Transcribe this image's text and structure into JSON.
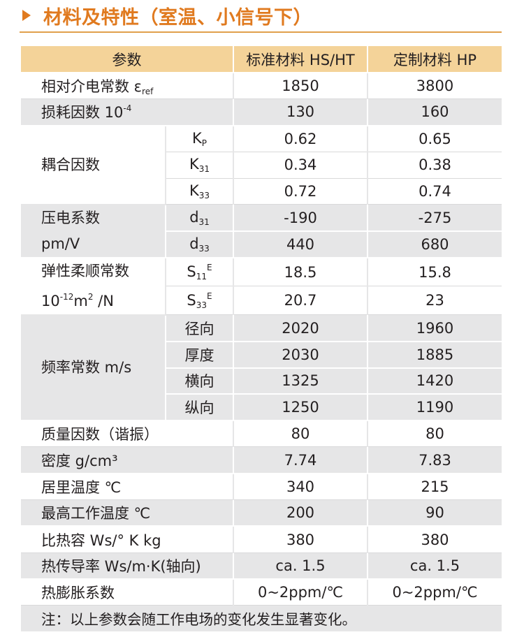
{
  "title": "材料及特性（室温、小信号下）",
  "headers": {
    "param": "参数",
    "std": "标准材料 HS/HT",
    "custom": "定制材料 HP"
  },
  "rows": {
    "eps": {
      "label": "相对介电常数 ε",
      "label_sub": "ref",
      "std": "1850",
      "custom": "3800"
    },
    "loss": {
      "label": "损耗因数 10",
      "label_sup": "-4",
      "std": "130",
      "custom": "160"
    },
    "coupling": {
      "label": "耦合因数",
      "kp": {
        "sym": "K",
        "sub": "P",
        "std": "0.62",
        "custom": "0.65"
      },
      "k31": {
        "sym": "K",
        "sub": "31",
        "std": "0.34",
        "custom": "0.38"
      },
      "k33": {
        "sym": "K",
        "sub": "33",
        "std": "0.72",
        "custom": "0.74"
      }
    },
    "piezo": {
      "label1": "压电系数",
      "label2": "pm/V",
      "d31": {
        "sym": "d",
        "sub": "31",
        "std": "-190",
        "custom": "-275"
      },
      "d33": {
        "sym": "d",
        "sub": "33",
        "std": "440",
        "custom": "680"
      }
    },
    "elastic": {
      "label1": "弹性柔顺常数",
      "label2_a": "10",
      "label2_sup": "-12",
      "label2_b": "m",
      "label2_sup2": "2",
      "label2_c": " /N",
      "s11": {
        "sym": "S",
        "sub": "11",
        "sup": "E",
        "std": "18.5",
        "custom": "15.8"
      },
      "s33": {
        "sym": "S",
        "sub": "33",
        "sup": "E",
        "std": "20.7",
        "custom": "23"
      }
    },
    "freq": {
      "label": "频率常数 m/s",
      "radial": {
        "name": "径向",
        "std": "2020",
        "custom": "1960"
      },
      "thickness": {
        "name": "厚度",
        "std": "2030",
        "custom": "1885"
      },
      "transverse": {
        "name": "横向",
        "std": "1325",
        "custom": "1420"
      },
      "longitudinal": {
        "name": "纵向",
        "std": "1250",
        "custom": "1190"
      }
    },
    "q": {
      "label": "质量因数（谐振）",
      "std": "80",
      "custom": "80"
    },
    "density": {
      "label": "密度 g/cm³",
      "std": "7.74",
      "custom": "7.83"
    },
    "curie": {
      "label": "居里温度 ℃",
      "std": "340",
      "custom": "215"
    },
    "maxtemp": {
      "label": "最高工作温度 ℃",
      "std": "200",
      "custom": "90"
    },
    "heat": {
      "label": "比热容 Ws/° K kg",
      "std": "380",
      "custom": "380"
    },
    "thermal": {
      "label": "热传导率 Ws/m·K(轴向)",
      "std": "ca. 1.5",
      "custom": "ca. 1.5"
    },
    "expansion": {
      "label": "热膨胀系数",
      "std": "0~2ppm/℃",
      "custom": "0~2ppm/℃"
    }
  },
  "note": "注：以上参数会随工作电场的变化发生显著变化。",
  "colors": {
    "accent": "#e07a1f",
    "header_bg": "#f4d399",
    "row_gray": "#e6e6e7"
  }
}
